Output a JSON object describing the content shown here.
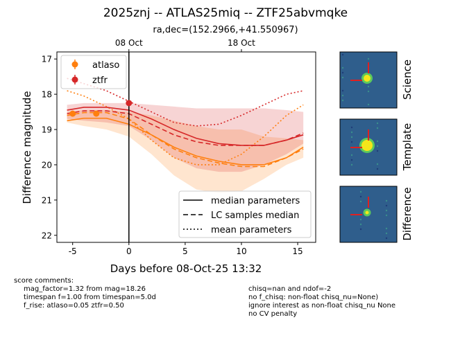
{
  "chart_data": {
    "type": "line",
    "title": "2025znj -- ATLAS25miq -- ZTF25abvmqke",
    "subtitle": "ra,dec=(152.2966,+41.550967)",
    "xlabel": "Days before 08-Oct-25 13:32",
    "ylabel": "Difference magnitude",
    "xlim": [
      -6.4,
      16.6
    ],
    "ylim": [
      22.2,
      16.8
    ],
    "xticks": [
      -5,
      0,
      5,
      10,
      15
    ],
    "yticks": [
      17,
      18,
      19,
      20,
      21,
      22
    ],
    "top_xticks": [
      {
        "value": 0,
        "label": "08 Oct"
      },
      {
        "value": 10,
        "label": "18 Oct"
      }
    ],
    "vline": 0,
    "x": [
      -5.5,
      -4,
      -2,
      0,
      2,
      4,
      6,
      8,
      10,
      12,
      14,
      15.5
    ],
    "line_legend": [
      "median parameters",
      "LC samples median",
      "mean parameters"
    ],
    "series": [
      {
        "name": "atlaso",
        "color": "#ff7f0e",
        "points_x": [
          -5,
          -2.9
        ],
        "points_y": [
          18.55,
          18.55
        ],
        "errors": [
          0.06,
          0.06
        ],
        "median": [
          18.75,
          18.68,
          18.68,
          18.85,
          19.15,
          19.5,
          19.75,
          19.9,
          20.0,
          20.0,
          19.8,
          19.5
        ],
        "samples_median": [
          18.6,
          18.52,
          18.52,
          18.7,
          19.15,
          19.55,
          19.8,
          19.95,
          20.05,
          20.05,
          19.8,
          19.55
        ],
        "mean": [
          17.9,
          18.05,
          18.35,
          18.7,
          19.3,
          19.8,
          20.0,
          20.0,
          19.7,
          19.2,
          18.6,
          18.3
        ],
        "band_lower": [
          18.8,
          18.9,
          19.0,
          19.2,
          19.7,
          20.3,
          20.7,
          20.8,
          20.75,
          20.4,
          20.0,
          19.8
        ],
        "band_upper": [
          18.5,
          18.45,
          18.45,
          18.5,
          18.6,
          18.75,
          18.9,
          19.0,
          19.0,
          19.2,
          19.25,
          19.3
        ]
      },
      {
        "name": "ztfr",
        "color": "#d62728",
        "points_x": [
          0
        ],
        "points_y": [
          18.25
        ],
        "errors": [
          0.05
        ],
        "median": [
          18.45,
          18.37,
          18.37,
          18.45,
          18.7,
          19.0,
          19.25,
          19.4,
          19.45,
          19.45,
          19.3,
          19.15
        ],
        "samples_median": [
          18.55,
          18.47,
          18.47,
          18.55,
          18.85,
          19.15,
          19.35,
          19.45,
          19.45,
          19.45,
          19.3,
          19.1
        ],
        "mean": [
          17.55,
          17.7,
          17.9,
          18.2,
          18.5,
          18.8,
          18.9,
          18.85,
          18.6,
          18.3,
          18.0,
          17.9
        ],
        "band_lower": [
          18.7,
          18.75,
          18.8,
          18.9,
          19.3,
          19.8,
          20.1,
          20.2,
          20.2,
          20.0,
          19.7,
          19.4
        ],
        "band_upper": [
          18.3,
          18.25,
          18.25,
          18.25,
          18.3,
          18.35,
          18.4,
          18.4,
          18.4,
          18.4,
          18.45,
          18.5
        ]
      }
    ]
  },
  "cutouts": [
    "Science",
    "Template",
    "Difference"
  ],
  "comments": {
    "heading": "score comments:",
    "left": [
      "mag_factor=1.32 from mag=18.26",
      "timespan f=1.00 from timespan=5.0d",
      "f_rise: atlaso=0.05 ztfr=0.50"
    ],
    "right": [
      "chisq=nan and ndof=-2",
      "no f_chisq: non-float chisq_nu=None)",
      "ignore interest as non-float chisq_nu None",
      "no CV penalty"
    ]
  }
}
